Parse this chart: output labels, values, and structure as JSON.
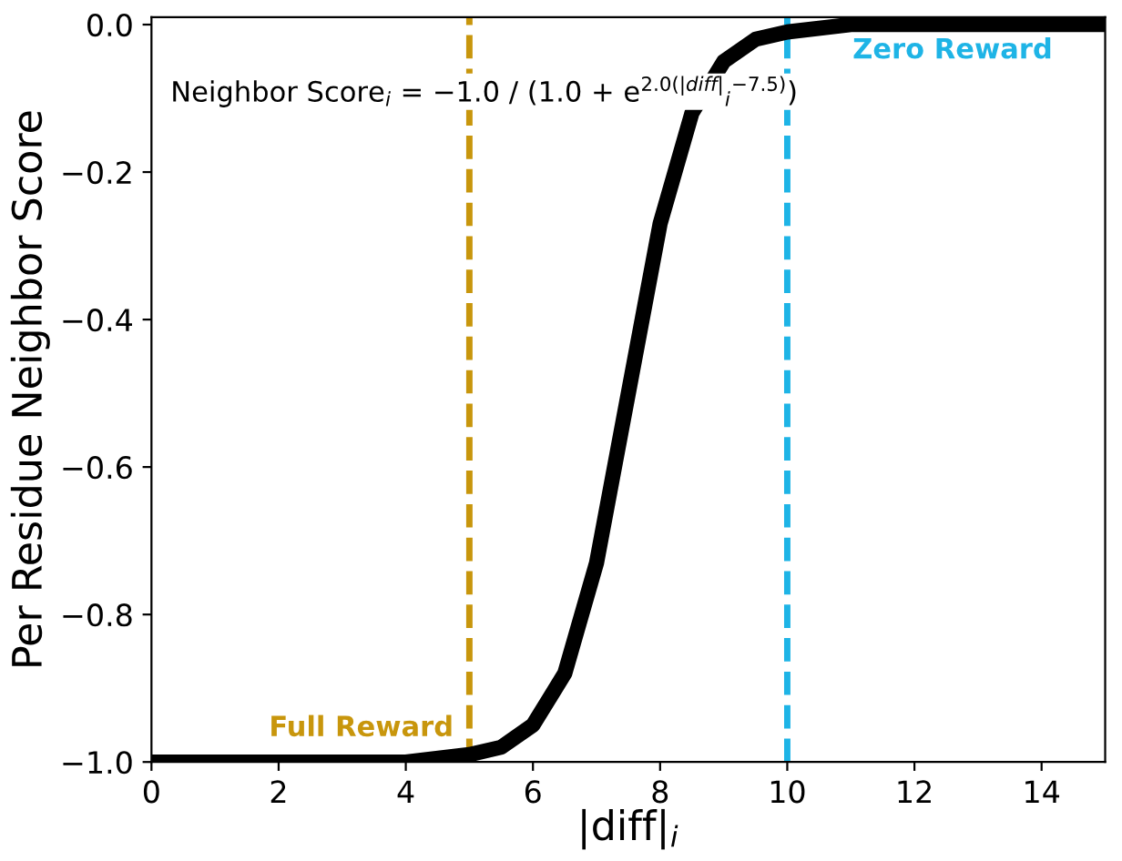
{
  "chart_data": {
    "type": "line",
    "xlabel": "|diff|$_{i}$",
    "ylabel": "Per Residue Neighbor Score",
    "x": [
      0,
      1,
      2,
      3,
      4,
      5,
      5.5,
      6,
      6.5,
      7,
      7.5,
      8,
      8.5,
      9,
      9.5,
      10,
      11,
      12,
      13,
      14,
      15
    ],
    "series": [
      {
        "color": "#000000",
        "values": [
          -1.0,
          -1.0,
          -1.0,
          -1.0,
          -1.0,
          -0.99,
          -0.98,
          -0.95,
          -0.88,
          -0.73,
          -0.5,
          -0.27,
          -0.12,
          -0.05,
          -0.02,
          -0.01,
          0.0,
          0.0,
          0.0,
          0.0,
          0.0
        ]
      }
    ],
    "xlim": [
      0,
      15
    ],
    "ylim": [
      -1.0,
      0.01
    ],
    "xticks": [
      0,
      2,
      4,
      6,
      8,
      10,
      12,
      14
    ],
    "yticks": [
      {
        "value": -1.0,
        "label": "−1.0"
      },
      {
        "value": -0.8,
        "label": "−0.8"
      },
      {
        "value": -0.6,
        "label": "−0.6"
      },
      {
        "value": -0.4,
        "label": "−0.4"
      },
      {
        "value": -0.2,
        "label": "−0.2"
      },
      {
        "value": 0.0,
        "label": "0.0"
      }
    ],
    "ref_lines": [
      {
        "axis": "x",
        "value": 5,
        "color": "#c8960c",
        "line_style": "dashed"
      },
      {
        "axis": "x",
        "value": 10,
        "color": "#1eb4e6",
        "line_style": "dashed"
      }
    ],
    "annotations": [
      "Full Reward",
      "Zero Reward",
      "Neighbor Score$_{i}$ = −1.0 / (1.0 + e$^{2.0(|diff|}$$_{i}$$^{−7.5)}$)"
    ],
    "grid": false,
    "legend": false,
    "marker": "none",
    "line_style": "solid"
  }
}
